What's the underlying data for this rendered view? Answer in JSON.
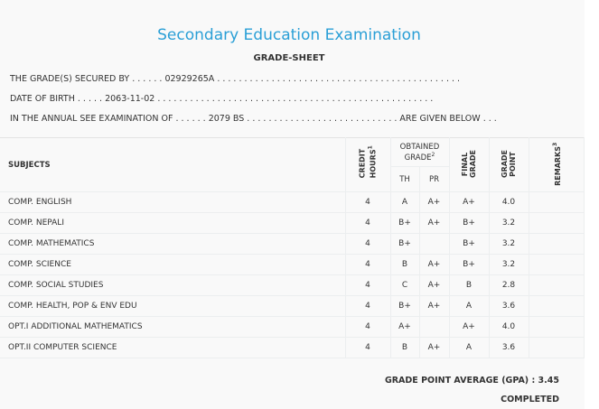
{
  "title": "Secondary Education Examination",
  "subtitle": "GRADE-SHEET",
  "info": {
    "secured_by": "THE GRADE(S) SECURED BY . . . . . . 02929265A . . . . . . . . . . . . . . . . . . . . . . . . . . . . . . . . . . . . . . . . . . . . .",
    "dob": "DATE OF BIRTH . . . . . 2063-11-02 . . . . . . . . . . . . . . . . . . . . . . . . . . . . . . . . . . . . . . . . . . . . . . . . . . .",
    "exam": "IN THE ANNUAL SEE EXAMINATION OF . . . . . . 2079 BS . . . . . . . . . . . . . . . . . . . . . . . . . . . . ARE GIVEN BELOW . . ."
  },
  "headers": {
    "subjects": "SUBJECTS",
    "credit": "CREDIT HOURS",
    "credit_sup": "1",
    "obtained": "OBTAINED GRADE",
    "obtained_sup": "2",
    "th": "TH",
    "pr": "PR",
    "final": "FINAL GRADE",
    "gp": "GRADE POINT",
    "remarks": "REMARKS",
    "remarks_sup": "3"
  },
  "rows": [
    {
      "subject": "COMP. ENGLISH",
      "credit": "4",
      "th": "A",
      "pr": "A+",
      "final": "A+",
      "gp": "4.0",
      "remarks": ""
    },
    {
      "subject": "COMP. NEPALI",
      "credit": "4",
      "th": "B+",
      "pr": "A+",
      "final": "B+",
      "gp": "3.2",
      "remarks": ""
    },
    {
      "subject": "COMP. MATHEMATICS",
      "credit": "4",
      "th": "B+",
      "pr": "",
      "final": "B+",
      "gp": "3.2",
      "remarks": ""
    },
    {
      "subject": "COMP. SCIENCE",
      "credit": "4",
      "th": "B",
      "pr": "A+",
      "final": "B+",
      "gp": "3.2",
      "remarks": ""
    },
    {
      "subject": "COMP. SOCIAL STUDIES",
      "credit": "4",
      "th": "C",
      "pr": "A+",
      "final": "B",
      "gp": "2.8",
      "remarks": ""
    },
    {
      "subject": "COMP. HEALTH, POP & ENV EDU",
      "credit": "4",
      "th": "B+",
      "pr": "A+",
      "final": "A",
      "gp": "3.6",
      "remarks": ""
    },
    {
      "subject": "OPT.I ADDITIONAL MATHEMATICS",
      "credit": "4",
      "th": "A+",
      "pr": "",
      "final": "A+",
      "gp": "4.0",
      "remarks": ""
    },
    {
      "subject": "OPT.II COMPUTER SCIENCE",
      "credit": "4",
      "th": "B",
      "pr": "A+",
      "final": "A",
      "gp": "3.6",
      "remarks": ""
    }
  ],
  "gpa": "GRADE POINT AVERAGE (GPA) : 3.45",
  "status": "COMPLETED",
  "colors": {
    "title": "#2a9fd6"
  }
}
